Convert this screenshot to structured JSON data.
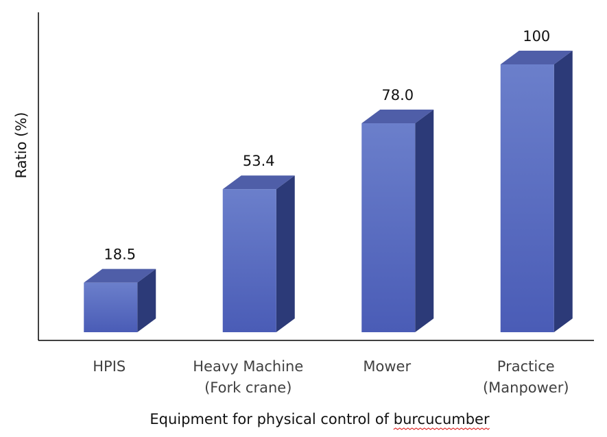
{
  "chart_data": {
    "type": "bar",
    "style": "3d-column",
    "categories": [
      [
        "HPIS"
      ],
      [
        "Heavy Machine",
        "(Fork crane)"
      ],
      [
        "Mower"
      ],
      [
        "Practice",
        "(Manpower)"
      ]
    ],
    "values": [
      18.5,
      53.4,
      78.0,
      100
    ],
    "value_labels": [
      "18.5",
      "53.4",
      "78.0",
      "100"
    ],
    "title": "",
    "xlabel": "Equipment for physical control of burcucumber",
    "ylabel": "Ratio (%)",
    "ylim": [
      0,
      100
    ],
    "y_tick_labels_shown": false,
    "grid": false,
    "legend": "none",
    "spellcheck_underlined_word": "burcucumber",
    "colors": {
      "bar_front_top": "#6b7fcb",
      "bar_front_bottom": "#4a5cb6",
      "bar_top_face": "#4f5ea8",
      "bar_side_face": "#2c3a78",
      "axis": "#000000",
      "spellcheck": "#e03131"
    }
  }
}
